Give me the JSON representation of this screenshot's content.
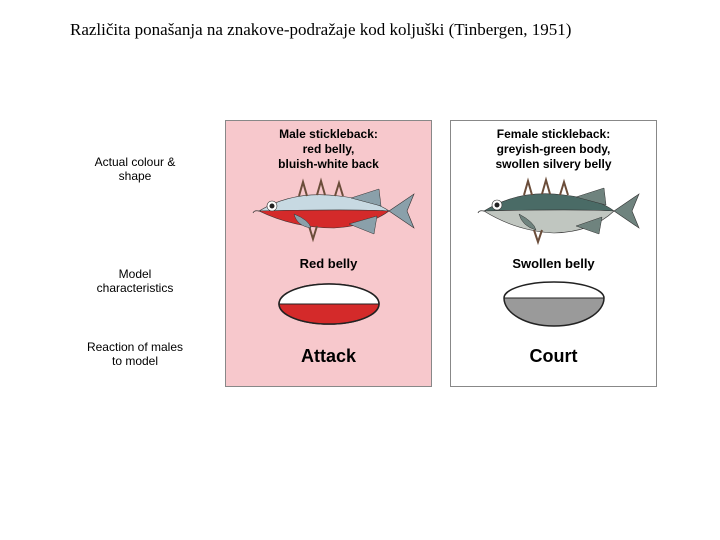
{
  "title": "Različita ponašanja na znakove-podražaje kod koljuški (Tinbergen, 1951)",
  "rows": {
    "r1": "Actual colour &\nshape",
    "r2": "Model\ncharacteristics",
    "r3": "Reaction of males\nto model"
  },
  "male": {
    "header": "Male stickleback:\nred belly,\nbluish-white back",
    "model_label": "Red belly",
    "reaction": "Attack",
    "fish": {
      "back_color": "#c7d9e2",
      "belly_color": "#d42a2a",
      "eye_color": "#222222",
      "spine_color": "#6b4d3a",
      "fin_color": "#8aa0aa"
    },
    "model": {
      "top_color": "#ffffff",
      "bottom_color": "#d42a2a",
      "outline": "#222222"
    },
    "panel_bg": "#f7c8cc"
  },
  "female": {
    "header": "Female stickleback:\ngreyish-green body,\nswollen silvery belly",
    "model_label": "Swollen belly",
    "reaction": "Court",
    "fish": {
      "back_color": "#4a6b66",
      "belly_color": "#c0c6c0",
      "eye_color": "#222222",
      "spine_color": "#6b4d3a",
      "fin_color": "#6f837e"
    },
    "model": {
      "top_color": "#ffffff",
      "bottom_color": "#9a9a9a",
      "outline": "#222222"
    },
    "panel_bg": "#ffffff"
  },
  "style": {
    "title_fontsize": 17,
    "label_fontsize": 12,
    "reaction_fontsize": 18,
    "border_color": "#888888"
  }
}
